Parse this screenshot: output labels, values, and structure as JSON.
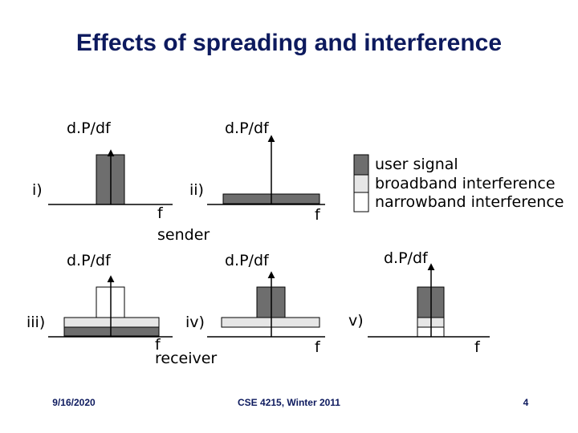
{
  "title": "Effects of spreading and interference",
  "panels": [
    {
      "label": "i)",
      "y_axis": "d.P/df",
      "x_axis": "f",
      "caption": "sender"
    },
    {
      "label": "ii)",
      "y_axis": "d.P/df",
      "x_axis": "f"
    },
    {
      "label": "iii)",
      "y_axis": "d.P/df",
      "x_axis": "f",
      "caption": "receiver"
    },
    {
      "label": "iv)",
      "y_axis": "d.P/df",
      "x_axis": "f"
    },
    {
      "label": "v)",
      "y_axis": "d.P/df",
      "x_axis": "f"
    }
  ],
  "legend": [
    "user signal",
    "broadband interference",
    "narrowband interference"
  ],
  "footer": {
    "date": "9/16/2020",
    "course": "CSE 4215, Winter 2011",
    "page": "4"
  }
}
